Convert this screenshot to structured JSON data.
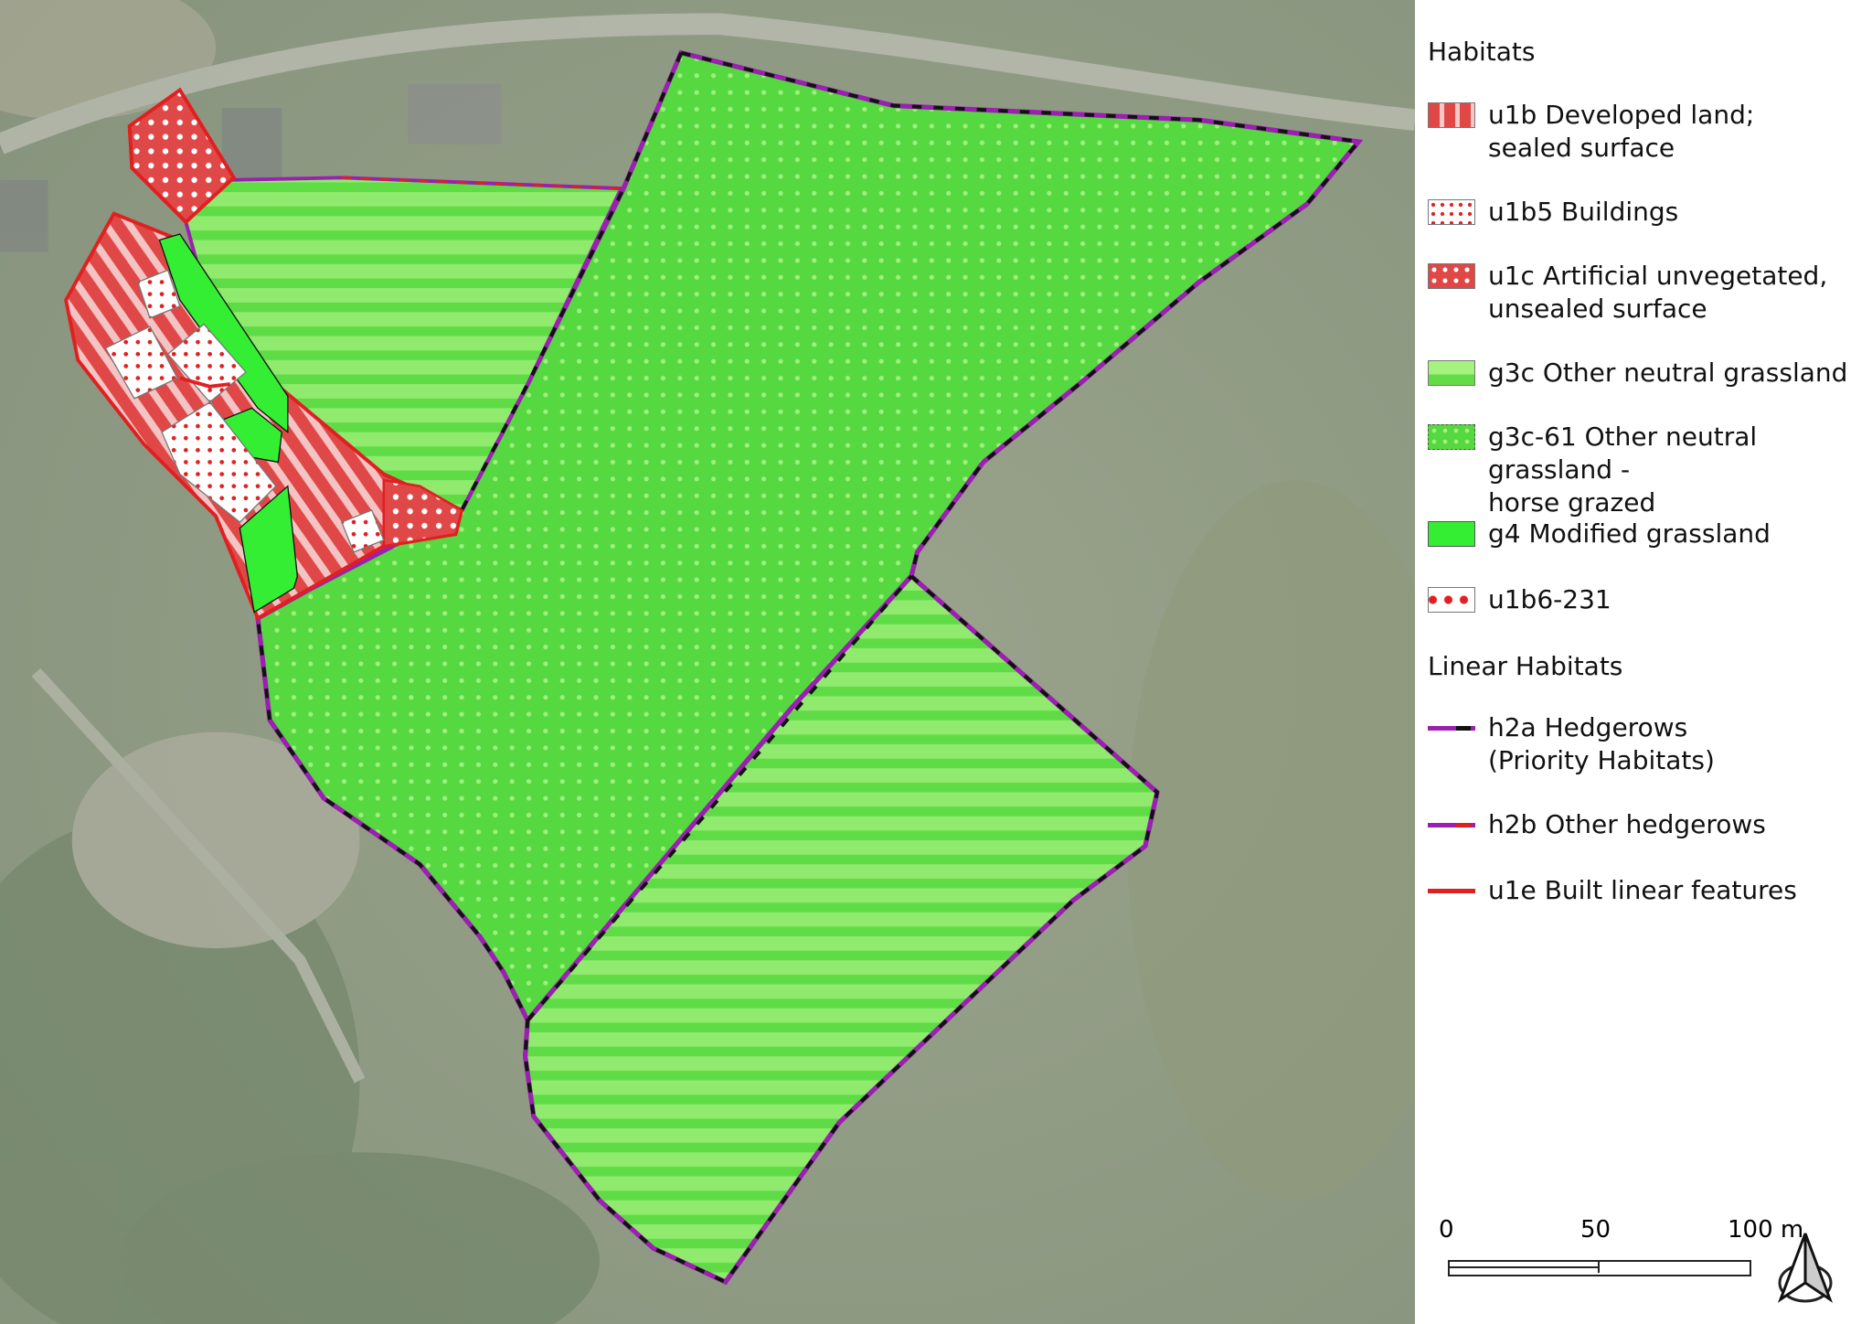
{
  "legend": {
    "habitats_title": "Habitats",
    "habitats": [
      {
        "code": "u1b",
        "label": "u1b Developed land;",
        "label2": "sealed surface",
        "pattern": "vertical-stripes",
        "color": "#e04848"
      },
      {
        "code": "u1b5",
        "label": "u1b5 Buildings",
        "pattern": "small-red-dots-on-white",
        "color": "#e02020"
      },
      {
        "code": "u1c",
        "label": "u1c Artificial unvegetated,",
        "label2": "unsealed surface",
        "pattern": "white-dots-on-red",
        "color": "#e04848"
      },
      {
        "code": "g3c",
        "label": "g3c Other neutral grassland",
        "pattern": "horizontal-stripes",
        "color": "#7fe860"
      },
      {
        "code": "g3c-61",
        "label": "g3c-61 Other neutral grassland -",
        "label2": "horse grazed",
        "pattern": "light-dots-on-green",
        "color": "#55dd40"
      },
      {
        "code": "g4",
        "label": "g4 Modified grassland",
        "pattern": "solid",
        "color": "#33ee33"
      },
      {
        "code": "u1b6-231",
        "label": "u1b6-231",
        "pattern": "large-red-dots-on-white",
        "color": "#e02020"
      }
    ],
    "linear_title": "Linear Habitats",
    "linear": [
      {
        "code": "h2a",
        "label": "h2a Hedgerows",
        "label2": "(Priority Habitats)",
        "colors": [
          "#9b1fb0",
          "#111111"
        ]
      },
      {
        "code": "h2b",
        "label": "h2b Other hedgerows",
        "colors": [
          "#9b1fb0",
          "#e02020"
        ]
      },
      {
        "code": "u1e",
        "label": "u1e Built linear features",
        "colors": [
          "#e02020"
        ]
      }
    ]
  },
  "scalebar": {
    "labels": [
      "0",
      "50",
      "100 m"
    ]
  },
  "north_arrow": {
    "icon": "north-arrow-icon"
  }
}
